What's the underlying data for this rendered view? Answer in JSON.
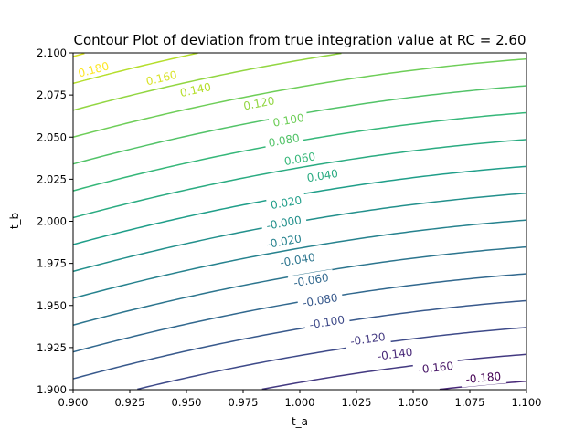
{
  "chart_data": {
    "type": "contour",
    "title": "Contour Plot of deviation from true integration value at RC = 2.60",
    "xlabel": "t_a",
    "ylabel": "t_b",
    "xlim": [
      0.9,
      1.1
    ],
    "ylim": [
      1.9,
      2.1
    ],
    "x_ticks": [
      "0.900",
      "0.925",
      "0.950",
      "0.975",
      "1.000",
      "1.025",
      "1.050",
      "1.075",
      "1.100"
    ],
    "y_ticks": [
      "1.900",
      "1.925",
      "1.950",
      "1.975",
      "2.000",
      "2.025",
      "2.050",
      "2.075",
      "2.100"
    ],
    "colormap": "viridis",
    "levels": [
      -0.18,
      -0.16,
      -0.14,
      -0.12,
      -0.1,
      -0.08,
      -0.06,
      -0.04,
      -0.02,
      0.0,
      0.02,
      0.04,
      0.06,
      0.08,
      0.1,
      0.12,
      0.14,
      0.16,
      0.18
    ],
    "contour_labels": [
      {
        "text": "-0.180",
        "x": 1.081,
        "y": 1.907
      },
      {
        "text": "-0.160",
        "x": 1.06,
        "y": 1.913
      },
      {
        "text": "-0.140",
        "x": 1.042,
        "y": 1.921
      },
      {
        "text": "-0.120",
        "x": 1.03,
        "y": 1.93
      },
      {
        "text": "-0.100",
        "x": 1.012,
        "y": 1.94
      },
      {
        "text": "-0.080",
        "x": 1.009,
        "y": 1.953
      },
      {
        "text": "-0.060",
        "x": 1.005,
        "y": 1.965
      },
      {
        "text": "-0.040",
        "x": 0.999,
        "y": 1.977
      },
      {
        "text": "-0.020",
        "x": 0.993,
        "y": 1.988
      },
      {
        "text": "-0.000",
        "x": 0.993,
        "y": 1.999
      },
      {
        "text": "0.020",
        "x": 0.994,
        "y": 2.011
      },
      {
        "text": "0.040",
        "x": 1.01,
        "y": 2.027
      },
      {
        "text": "0.060",
        "x": 1.0,
        "y": 2.037
      },
      {
        "text": "0.080",
        "x": 0.993,
        "y": 2.048
      },
      {
        "text": "0.100",
        "x": 0.995,
        "y": 2.06
      },
      {
        "text": "0.120",
        "x": 0.982,
        "y": 2.07
      },
      {
        "text": "0.140",
        "x": 0.954,
        "y": 2.078
      },
      {
        "text": "0.160",
        "x": 0.939,
        "y": 2.085
      },
      {
        "text": "0.180",
        "x": 0.909,
        "y": 2.09
      }
    ]
  }
}
